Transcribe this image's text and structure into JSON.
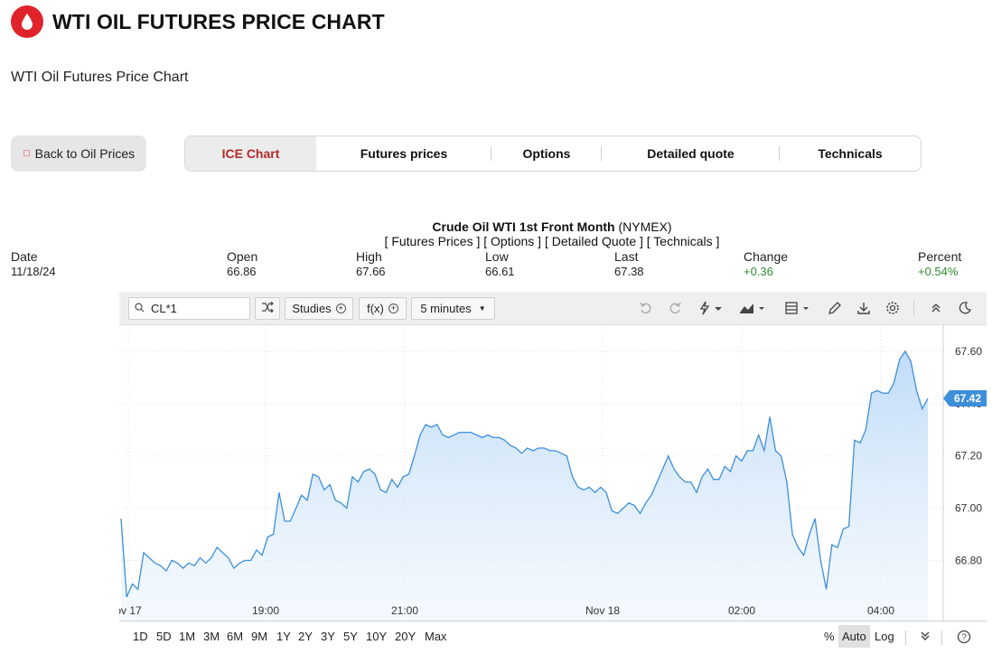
{
  "header": {
    "title": "WTI OIL FUTURES PRICE CHART",
    "subtitle": "WTI Oil Futures Price Chart",
    "brand_color": "#e0222a",
    "logo_icon": "oil-drop-icon"
  },
  "back_button": {
    "label": "Back to Oil Prices"
  },
  "tabs": [
    {
      "label": "ICE Chart",
      "active": true
    },
    {
      "label": "Futures prices"
    },
    {
      "label": "Options"
    },
    {
      "label": "Detailed quote"
    },
    {
      "label": "Technicals"
    }
  ],
  "chart_header": {
    "name": "Crude Oil WTI 1st Front Month",
    "exchange": " (NYMEX)",
    "links": "[ Futures Prices ] [ Options ] [ Detailed Quote ] [ Technicals ]"
  },
  "stats": [
    {
      "label": "Date",
      "value": "11/18/24"
    },
    {
      "label": "Open",
      "value": "66.86"
    },
    {
      "label": "High",
      "value": "67.66"
    },
    {
      "label": "Low",
      "value": "66.61"
    },
    {
      "label": "Last",
      "value": "67.38"
    },
    {
      "label": "Change",
      "value": "+0.36",
      "up": true
    },
    {
      "label": "Percent",
      "value": "+0.54%",
      "up": true
    }
  ],
  "toolbar": {
    "symbol": "CL*1",
    "studies_label": "Studies",
    "fx_label": "f(x)",
    "interval_label": "5 minutes"
  },
  "chart_data": {
    "type": "area",
    "x_ticks": [
      "ov 17",
      "19:00",
      "21:00",
      "Nov 18",
      "02:00",
      "04:00"
    ],
    "y_ticks": [
      "67.60",
      "67.40",
      "67.20",
      "67.00",
      "66.80"
    ],
    "ylim": [
      66.57,
      67.7
    ],
    "last_value_label": "67.42",
    "last_value": 67.42,
    "line_color": "#3d8fd9",
    "values": [
      66.96,
      66.66,
      66.71,
      66.69,
      66.83,
      66.81,
      66.79,
      66.78,
      66.76,
      66.8,
      66.79,
      66.77,
      66.79,
      66.78,
      66.81,
      66.79,
      66.81,
      66.85,
      66.83,
      66.81,
      66.77,
      66.79,
      66.8,
      66.8,
      66.84,
      66.82,
      66.89,
      66.9,
      67.06,
      66.95,
      66.95,
      67.0,
      67.05,
      67.03,
      67.13,
      67.12,
      67.07,
      67.09,
      67.03,
      67.02,
      67.0,
      67.12,
      67.1,
      67.14,
      67.15,
      67.13,
      67.07,
      67.06,
      67.11,
      67.08,
      67.12,
      67.13,
      67.2,
      67.28,
      67.32,
      67.31,
      67.32,
      67.28,
      67.27,
      67.28,
      67.29,
      67.29,
      67.29,
      67.28,
      67.27,
      67.28,
      67.27,
      67.27,
      67.26,
      67.24,
      67.23,
      67.21,
      67.23,
      67.22,
      67.23,
      67.23,
      67.22,
      67.22,
      67.21,
      67.2,
      67.12,
      67.08,
      67.07,
      67.08,
      67.06,
      67.08,
      67.06,
      66.99,
      66.98,
      67.0,
      67.02,
      67.01,
      66.98,
      67.02,
      67.05,
      67.1,
      67.15,
      67.2,
      67.15,
      67.12,
      67.1,
      67.1,
      67.06,
      67.12,
      67.15,
      67.11,
      67.11,
      67.16,
      67.14,
      67.2,
      67.18,
      67.22,
      67.22,
      67.28,
      67.22,
      67.35,
      67.22,
      67.2,
      67.1,
      66.9,
      66.85,
      66.82,
      66.9,
      66.96,
      66.8,
      66.69,
      66.86,
      66.85,
      66.92,
      66.93,
      67.26,
      67.25,
      67.3,
      67.44,
      67.45,
      67.44,
      67.44,
      67.48,
      67.57,
      67.6,
      67.56,
      67.45,
      67.38,
      67.42
    ]
  },
  "bottom_bar": {
    "ranges": [
      "1D",
      "5D",
      "1M",
      "3M",
      "6M",
      "9M",
      "1Y",
      "2Y",
      "3Y",
      "5Y",
      "10Y",
      "20Y",
      "Max"
    ],
    "percent_label": "%",
    "auto_label": "Auto",
    "log_label": "Log"
  }
}
